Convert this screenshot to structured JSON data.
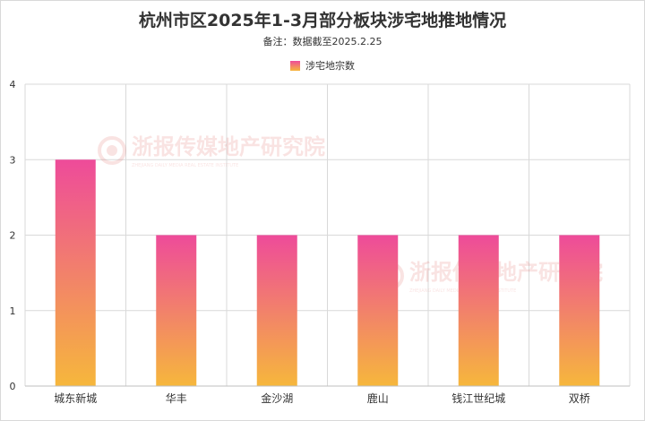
{
  "title": "杭州市区2025年1-3月部分板块涉宅地推地情况",
  "subtitle": "备注：数据截至2025.2.25",
  "watermark": {
    "main": "浙报传媒地产研究院",
    "sub": "ZHEJIANG DAILY MEDIA REAL ESTATE INSTITUTE"
  },
  "colors": {
    "bar_top": "#ee4b9a",
    "bar_bottom": "#f6b73c",
    "grid": "#d9d9d9"
  },
  "chart_data": {
    "type": "bar",
    "title": "杭州市区2025年1-3月部分板块涉宅地推地情况",
    "categories": [
      "城东新城",
      "华丰",
      "金沙湖",
      "鹿山",
      "钱江世纪城",
      "双桥"
    ],
    "series": [
      {
        "name": "涉宅地宗数",
        "values": [
          3,
          2,
          2,
          2,
          2,
          2
        ]
      }
    ],
    "ylim": [
      0,
      4
    ],
    "yticks": [
      0,
      1,
      2,
      3,
      4
    ],
    "grid": true,
    "legend": "top"
  }
}
